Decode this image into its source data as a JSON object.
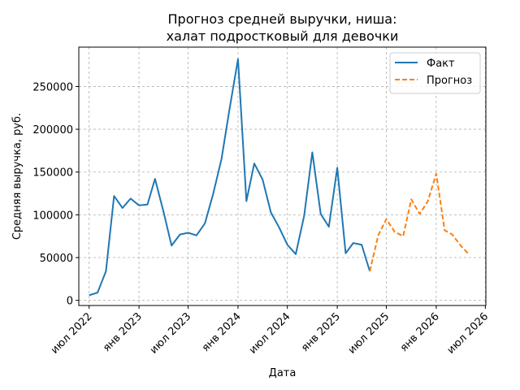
{
  "chart_data": {
    "type": "line",
    "title": [
      "Прогноз средней выручки, ниша:",
      "халат подростковый для девочки"
    ],
    "xlabel": "Дата",
    "ylabel": "Средняя выручка, руб.",
    "grid": true,
    "legend_position": "top-right",
    "x_ticks": [
      "2022-07-01",
      "2023-01-01",
      "2023-07-01",
      "2024-01-01",
      "2024-07-01",
      "2025-01-01",
      "2025-07-01",
      "2026-01-01",
      "2026-07-01"
    ],
    "x_tick_labels": [
      "июл 2022",
      "янв 2023",
      "июл 2023",
      "янв 2024",
      "июл 2024",
      "янв 2025",
      "июл 2025",
      "янв 2026",
      "июл 2026"
    ],
    "y_ticks": [
      0,
      50000,
      100000,
      150000,
      200000,
      250000
    ],
    "y_tick_labels": [
      "0",
      "50000",
      "100000",
      "150000",
      "200000",
      "250000"
    ],
    "xlim": [
      "2022-05-24",
      "2026-07-03"
    ],
    "ylim": [
      -6000,
      296000
    ],
    "series": [
      {
        "name": "Факт",
        "color": "#1f77b4",
        "style": "solid",
        "x": [
          "2022-07-01",
          "2022-08-01",
          "2022-09-01",
          "2022-10-01",
          "2022-11-01",
          "2022-12-01",
          "2023-01-01",
          "2023-02-01",
          "2023-03-01",
          "2023-04-01",
          "2023-05-01",
          "2023-06-01",
          "2023-07-01",
          "2023-08-01",
          "2023-09-01",
          "2023-10-01",
          "2023-11-01",
          "2023-12-01",
          "2024-01-01",
          "2024-02-01",
          "2024-03-01",
          "2024-04-01",
          "2024-05-01",
          "2024-06-01",
          "2024-07-01",
          "2024-08-01",
          "2024-09-01",
          "2024-10-01",
          "2024-11-01",
          "2024-12-01",
          "2025-01-01",
          "2025-02-01",
          "2025-03-01",
          "2025-04-01",
          "2025-05-01"
        ],
        "values": [
          6000,
          9000,
          34000,
          122000,
          108000,
          119000,
          111000,
          112000,
          142000,
          104000,
          64000,
          77000,
          79000,
          76000,
          90000,
          124000,
          165000,
          224000,
          282000,
          116000,
          160000,
          141000,
          103000,
          85000,
          65000,
          54000,
          99000,
          173000,
          101000,
          86000,
          155000,
          55000,
          67000,
          65000,
          34000
        ]
      },
      {
        "name": "Прогноз",
        "color": "#ff7f0e",
        "style": "dashed",
        "x": [
          "2025-05-01",
          "2025-06-01",
          "2025-07-01",
          "2025-08-01",
          "2025-09-01",
          "2025-10-01",
          "2025-11-01",
          "2025-12-01",
          "2026-01-01",
          "2026-02-01",
          "2026-03-01",
          "2026-04-01",
          "2026-05-01"
        ],
        "values": [
          34000,
          76000,
          95000,
          80000,
          75000,
          118000,
          101000,
          116000,
          148000,
          82000,
          77000,
          64000,
          54000
        ]
      }
    ]
  }
}
